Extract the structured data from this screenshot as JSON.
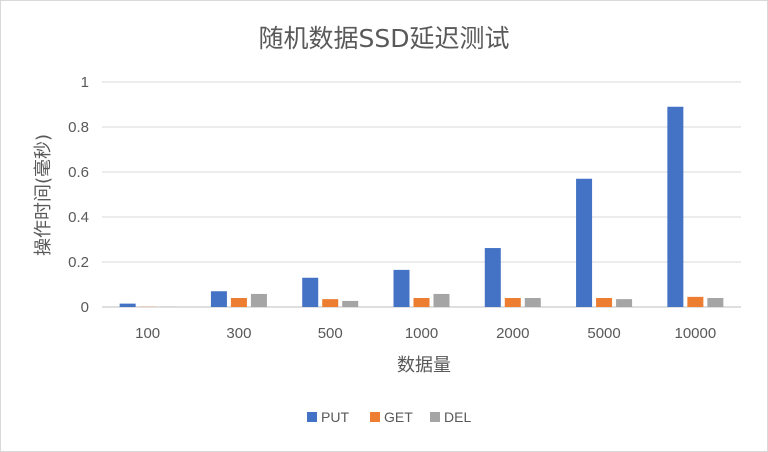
{
  "chart_data": {
    "type": "bar",
    "title": "随机数据SSD延迟测试",
    "xlabel": "数据量",
    "ylabel": "操作时间(毫秒)",
    "categories": [
      "100",
      "300",
      "500",
      "1000",
      "2000",
      "5000",
      "10000"
    ],
    "series": [
      {
        "name": "PUT",
        "color": "#4472c4",
        "values": [
          0.015,
          0.07,
          0.13,
          0.165,
          0.262,
          0.57,
          0.89
        ]
      },
      {
        "name": "GET",
        "color": "#ed7d31",
        "values": [
          0.001,
          0.04,
          0.035,
          0.04,
          0.04,
          0.04,
          0.045
        ]
      },
      {
        "name": "DEL",
        "color": "#a5a5a5",
        "values": [
          0.001,
          0.058,
          0.027,
          0.058,
          0.04,
          0.035,
          0.04
        ]
      }
    ],
    "y_ticks": [
      "0",
      "0.2",
      "0.4",
      "0.6",
      "0.8",
      "1"
    ],
    "ylim": [
      0,
      1
    ],
    "grid": true,
    "legend_position": "bottom"
  }
}
